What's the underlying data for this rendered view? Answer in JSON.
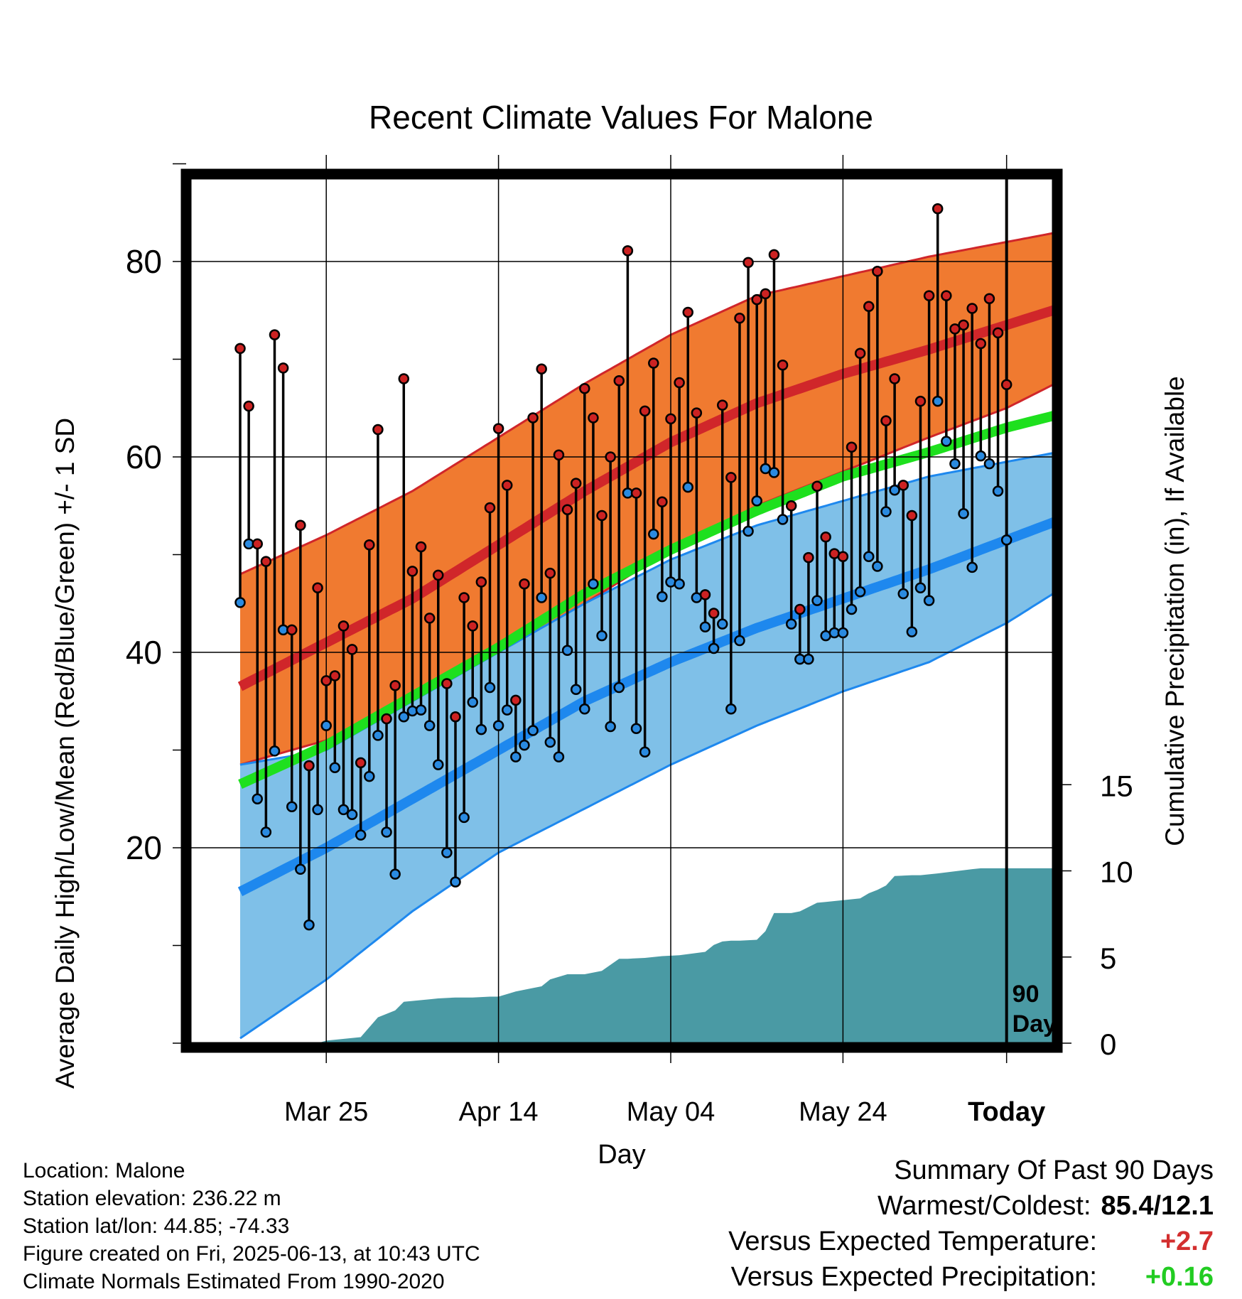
{
  "chart_data": {
    "type": "line",
    "title": "Recent Climate Values For Malone",
    "xlabel": "Day",
    "ylabel": "Average Daily High/Low/Mean (Red/Blue/Green) +/- 1 SD",
    "y2label": "Cumulative Precipitation (in), If Available",
    "x_range_days": [
      -89,
      11
    ],
    "x_ticks": [
      {
        "day": -79,
        "label": "Mar 25"
      },
      {
        "day": -59,
        "label": "Apr 14"
      },
      {
        "day": -39,
        "label": "May 04"
      },
      {
        "day": -19,
        "label": "May 24"
      },
      {
        "day": 0,
        "label": "Today"
      }
    ],
    "ylim": [
      0,
      90
    ],
    "y_ticks": [
      20,
      40,
      60,
      80
    ],
    "y2lim": [
      0,
      20
    ],
    "y2_ticks": [
      0,
      5,
      10,
      15
    ],
    "grid": true,
    "today_marker": {
      "day": 0,
      "label_line1": "90",
      "label_line2": "Days"
    },
    "normal_high": {
      "days": [
        -89,
        -79,
        -69,
        -59,
        -49,
        -39,
        -29,
        -19,
        -9,
        0,
        9
      ],
      "mean": [
        36.5,
        41,
        45.5,
        51,
        56.5,
        61.5,
        65.5,
        68.5,
        71,
        73.5,
        76
      ],
      "upper": [
        48,
        52,
        56.5,
        62,
        67.5,
        72.5,
        76.5,
        78.5,
        80.5,
        82,
        83.5
      ],
      "lower": [
        28.5,
        31,
        35,
        40,
        45,
        50.5,
        55,
        58.5,
        62,
        65,
        69
      ]
    },
    "normal_low": {
      "days": [
        -89,
        -79,
        -69,
        -59,
        -49,
        -39,
        -29,
        -19,
        -9,
        0,
        9
      ],
      "mean": [
        15.5,
        20,
        25,
        30,
        35,
        39,
        42.5,
        45.5,
        48.5,
        51.5,
        54.5
      ],
      "upper": [
        28.5,
        30,
        35,
        40,
        45,
        49.5,
        53,
        55.5,
        58,
        59.5,
        61
      ],
      "lower": [
        0.5,
        6.5,
        13.5,
        19.5,
        24,
        28.5,
        32.5,
        36,
        39,
        43,
        48
      ]
    },
    "normal_mean": {
      "days": [
        -89,
        -79,
        -69,
        -59,
        -49,
        -39,
        -29,
        -19,
        -9,
        0,
        9
      ],
      "values": [
        26.5,
        30.5,
        35.5,
        40.5,
        46,
        50.5,
        54.5,
        58,
        60.5,
        63,
        65
      ]
    },
    "daily_high": [
      71.1,
      65.2,
      51.1,
      49.3,
      72.5,
      69.1,
      42.3,
      53.0,
      28.4,
      46.6,
      37.1,
      37.6,
      42.7,
      40.3,
      28.7,
      51.0,
      62.8,
      33.2,
      36.6,
      68.0,
      48.3,
      50.8,
      43.5,
      47.9,
      36.8,
      33.4,
      45.6,
      42.7,
      47.2,
      54.8,
      62.9,
      57.1,
      35.1,
      47.0,
      64.0,
      69.0,
      48.1,
      60.2,
      54.6,
      57.3,
      67.0,
      64.0,
      54.0,
      60.0,
      67.8,
      81.1,
      56.3,
      64.7,
      69.6,
      55.4,
      63.9,
      67.6,
      74.8,
      64.5,
      45.9,
      44.0,
      65.3,
      57.9,
      74.2,
      79.9,
      76.1,
      76.7,
      80.7,
      69.4,
      55.0,
      44.4,
      49.7,
      57.0,
      51.8,
      50.1,
      49.8,
      61.0,
      70.6,
      75.4,
      79.0,
      63.7,
      68.0,
      57.1,
      54.0,
      65.7,
      76.5,
      85.4,
      76.5,
      73.1,
      73.5,
      75.2,
      71.6,
      76.2,
      72.7,
      67.4
    ],
    "daily_low": [
      45.1,
      51.1,
      25.0,
      21.6,
      29.9,
      42.3,
      24.2,
      17.8,
      12.1,
      23.9,
      32.5,
      28.2,
      23.9,
      23.4,
      21.3,
      27.3,
      31.5,
      21.6,
      17.3,
      33.4,
      34.0,
      34.1,
      32.5,
      28.5,
      19.5,
      16.5,
      23.1,
      34.9,
      32.1,
      36.4,
      32.5,
      34.1,
      29.3,
      30.5,
      32.0,
      45.6,
      30.8,
      29.3,
      40.2,
      36.2,
      34.2,
      47.0,
      41.7,
      32.4,
      36.4,
      56.3,
      32.2,
      29.8,
      52.1,
      45.7,
      47.2,
      47.0,
      56.9,
      45.6,
      42.6,
      40.4,
      42.9,
      34.2,
      41.2,
      52.4,
      55.5,
      58.8,
      58.4,
      53.6,
      42.9,
      39.3,
      39.3,
      45.3,
      41.7,
      42.0,
      42.0,
      44.4,
      46.2,
      49.8,
      48.8,
      54.4,
      56.6,
      46.0,
      42.1,
      46.6,
      45.3,
      65.7,
      61.6,
      59.3,
      54.2,
      48.7,
      60.1,
      59.3,
      56.5,
      51.5
    ],
    "cumulative_precip": {
      "days": [
        -89,
        -80,
        -79,
        -75,
        -73,
        -71,
        -70,
        -67,
        -66,
        -64,
        -62,
        -60,
        -59,
        -57,
        -55,
        -54,
        -53,
        -51,
        -49,
        -47,
        -45,
        -44,
        -42,
        -40,
        -38,
        -35,
        -34,
        -33,
        -32,
        -31,
        -29,
        -28,
        -27,
        -25,
        -24,
        -22,
        -21,
        -19,
        -17,
        -16,
        -15,
        -14,
        -13,
        -11,
        -10,
        -8,
        -4,
        -3,
        0,
        9
      ],
      "values": [
        0,
        0,
        0.15,
        0.35,
        1.5,
        1.9,
        2.4,
        2.55,
        2.6,
        2.65,
        2.65,
        2.7,
        2.7,
        3.0,
        3.2,
        3.3,
        3.7,
        4.0,
        4.0,
        4.2,
        4.9,
        4.9,
        4.95,
        5.05,
        5.1,
        5.3,
        5.7,
        5.9,
        5.95,
        5.95,
        6.0,
        6.5,
        7.55,
        7.55,
        7.65,
        8.15,
        8.2,
        8.3,
        8.4,
        8.7,
        8.9,
        9.15,
        9.7,
        9.75,
        9.75,
        9.85,
        10.1,
        10.15,
        10.15,
        10.15
      ]
    }
  },
  "info": {
    "location": "Location: Malone",
    "elevation": "Station elevation: 236.22 m",
    "latlon": "Station lat/lon: 44.85; -74.33",
    "created": "Figure created on Fri, 2025-06-13, at 10:43 UTC",
    "normals": "Climate Normals Estimated From 1990-2020"
  },
  "summary": {
    "heading": "Summary Of Past 90 Days",
    "warmest_coldest_label": "Warmest/Coldest:",
    "warmest_coldest_value": "85.4/12.1",
    "temp_label": "Versus Expected Temperature:",
    "temp_value": "+2.7",
    "temp_color": "#d32f2f",
    "precip_label": "Versus Expected Precipitation:",
    "precip_value": "+0.16",
    "precip_color": "#22cc22"
  },
  "colors": {
    "high_band": "#f07a30",
    "high_line": "#d0262a",
    "low_band": "#7fc0e8",
    "low_line": "#1e88ee",
    "mean_line": "#1ee01e",
    "precip_fill": "#4a9aa4",
    "high_point": "#cc2222",
    "low_point": "#2a8ae0"
  }
}
